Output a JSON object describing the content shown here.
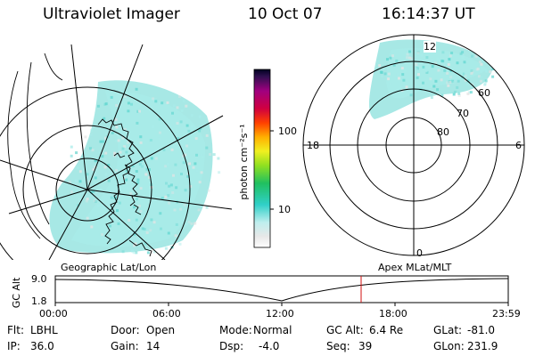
{
  "header": {
    "instrument": "Ultraviolet Imager",
    "date": "10 Oct 07",
    "time": "16:14:37 UT"
  },
  "colorbar": {
    "unit_label": "photon cm⁻²s⁻¹",
    "ticks": [
      "100",
      "10"
    ],
    "scale": "log"
  },
  "polar_plot": {
    "mlt_labels": {
      "top": "12",
      "left": "18",
      "right": "6",
      "bottom": "0"
    },
    "mlat_labels": [
      "60",
      "70",
      "80"
    ]
  },
  "timeline": {
    "left_caption": "Geographic Lat/Lon",
    "right_caption": "Apex MLat/MLT",
    "axis_title": "GC Alt",
    "y_ticks": [
      "9.0",
      "1.8"
    ],
    "x_ticks": [
      "00:00",
      "06:00",
      "12:00",
      "18:00",
      "23:59"
    ],
    "marker_time": "16:14:37",
    "marker_color": "#d01010"
  },
  "info": {
    "row1": [
      {
        "key": "Flt:",
        "val": "LBHL"
      },
      {
        "key": "Door:",
        "val": "Open"
      },
      {
        "key": "Mode:",
        "val": "Normal"
      },
      {
        "key": "GC Alt:",
        "val": "6.4 Re"
      },
      {
        "key": "GLat:",
        "val": "-81.0"
      }
    ],
    "row2": [
      {
        "key": "IP:",
        "val": "36.0"
      },
      {
        "key": "Gain:",
        "val": "14"
      },
      {
        "key": "Dsp:",
        "val": "-4.0"
      },
      {
        "key": "Seq:",
        "val": "39"
      },
      {
        "key": "GLon:",
        "val": "231.9"
      }
    ]
  },
  "colors": {
    "aurora": "#5fd6d0",
    "aurora_light": "#a9ecea",
    "noise": "#e4e4e4"
  }
}
